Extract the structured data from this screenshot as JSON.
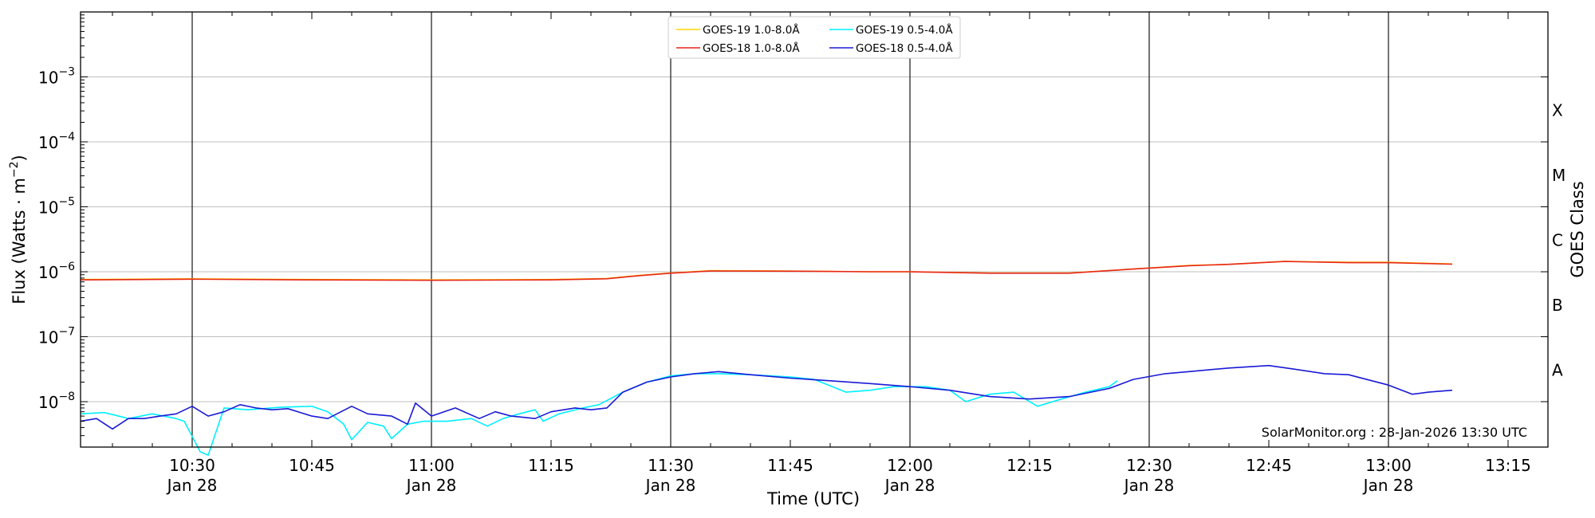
{
  "chart_data": {
    "type": "line",
    "xlabel": "Time (UTC)",
    "ylabel_base": "Flux (Watts · m",
    "ylabel_exp": "−2",
    "ylabel_close": ")",
    "right_label": "GOES Class",
    "credit": "SolarMonitor.org : 28-Jan-2026 13:30 UTC",
    "y_scale": "log",
    "ylim": [
      "2e-9",
      "1e-2"
    ],
    "xlim": [
      "10:16",
      "13:20"
    ],
    "grid": "horizontal at each decade",
    "legend_position": "top-center",
    "x_ticks": [
      {
        "time": "10:30",
        "label": "10:30",
        "sub": "Jan 28",
        "major": true
      },
      {
        "time": "10:45",
        "label": "10:45",
        "sub": "",
        "major": false
      },
      {
        "time": "11:00",
        "label": "11:00",
        "sub": "Jan 28",
        "major": true
      },
      {
        "time": "11:15",
        "label": "11:15",
        "sub": "",
        "major": false
      },
      {
        "time": "11:30",
        "label": "11:30",
        "sub": "Jan 28",
        "major": true
      },
      {
        "time": "11:45",
        "label": "11:45",
        "sub": "",
        "major": false
      },
      {
        "time": "12:00",
        "label": "12:00",
        "sub": "Jan 28",
        "major": true
      },
      {
        "time": "12:15",
        "label": "12:15",
        "sub": "",
        "major": false
      },
      {
        "time": "12:30",
        "label": "12:30",
        "sub": "Jan 28",
        "major": true
      },
      {
        "time": "12:45",
        "label": "12:45",
        "sub": "",
        "major": false
      },
      {
        "time": "13:00",
        "label": "13:00",
        "sub": "Jan 28",
        "major": true
      },
      {
        "time": "13:15",
        "label": "13:15",
        "sub": "",
        "major": false
      }
    ],
    "y_ticks": [
      {
        "exp": -8,
        "label": "10",
        "sup": "−8"
      },
      {
        "exp": -7,
        "label": "10",
        "sup": "−7"
      },
      {
        "exp": -6,
        "label": "10",
        "sup": "−6"
      },
      {
        "exp": -5,
        "label": "10",
        "sup": "−5"
      },
      {
        "exp": -4,
        "label": "10",
        "sup": "−4"
      },
      {
        "exp": -3,
        "label": "10",
        "sup": "−3"
      }
    ],
    "goes_classes": [
      {
        "label": "A",
        "exp": -7.5
      },
      {
        "label": "B",
        "exp": -6.5
      },
      {
        "label": "C",
        "exp": -5.5
      },
      {
        "label": "M",
        "exp": -4.5
      },
      {
        "label": "X",
        "exp": -3.5
      }
    ],
    "series": [
      {
        "name": "GOES-19 1.0-8.0Å",
        "color": "#ffd700",
        "x": [
          "10:16",
          "10:30",
          "10:45",
          "11:00",
          "11:15",
          "11:22",
          "11:26",
          "11:30",
          "11:35",
          "11:45",
          "11:55",
          "12:00",
          "12:10",
          "12:20",
          "12:28",
          "12:35",
          "12:40",
          "12:47",
          "12:55",
          "13:00",
          "13:08"
        ],
        "y": [
          7.6e-07,
          7.8e-07,
          7.6e-07,
          7.5e-07,
          7.6e-07,
          7.9e-07,
          8.8e-07,
          9.6e-07,
          1.04e-06,
          1.03e-06,
          1e-06,
          1e-06,
          9.6e-07,
          9.6e-07,
          1.1e-06,
          1.25e-06,
          1.3e-06,
          1.45e-06,
          1.4e-06,
          1.4e-06,
          1.32e-06
        ]
      },
      {
        "name": "GOES-18 1.0-8.0Å",
        "color": "#e8251a",
        "x": [
          "10:16",
          "10:30",
          "10:45",
          "11:00",
          "11:15",
          "11:22",
          "11:26",
          "11:30",
          "11:35",
          "11:45",
          "11:55",
          "12:00",
          "12:10",
          "12:20",
          "12:28",
          "12:35",
          "12:40",
          "12:47",
          "12:55",
          "13:00",
          "13:08"
        ],
        "y": [
          7.5e-07,
          7.7e-07,
          7.5e-07,
          7.4e-07,
          7.5e-07,
          7.8e-07,
          8.7e-07,
          9.5e-07,
          1.03e-06,
          1.02e-06,
          1e-06,
          1e-06,
          9.5e-07,
          9.5e-07,
          1.1e-06,
          1.24e-06,
          1.3e-06,
          1.44e-06,
          1.38e-06,
          1.38e-06,
          1.31e-06
        ]
      },
      {
        "name": "GOES-19 0.5-4.0Å",
        "color": "#00f0ff",
        "x": [
          "10:16",
          "10:19",
          "10:22",
          "10:25",
          "10:28",
          "10:29",
          "10:31",
          "10:32",
          "10:34",
          "10:37",
          "10:41",
          "10:45",
          "10:47",
          "10:49",
          "10:50",
          "10:52",
          "10:54",
          "10:55",
          "10:57",
          "10:59",
          "11:02",
          "11:05",
          "11:07",
          "11:09",
          "11:11",
          "11:13",
          "11:14",
          "11:16",
          "11:19",
          "11:21",
          "11:24",
          "11:27",
          "11:30",
          "11:33",
          "11:36",
          "11:40",
          "11:45",
          "11:48",
          "11:52",
          "11:55",
          "11:58",
          "12:02",
          "12:05",
          "12:07",
          "12:10",
          "12:13",
          "12:16",
          "12:19",
          "12:22",
          "12:25",
          "12:26"
        ],
        "y": [
          6.5e-09,
          6.8e-09,
          5.5e-09,
          6.5e-09,
          5.5e-09,
          5e-09,
          1.7e-09,
          1.5e-09,
          8e-09,
          7.5e-09,
          8.2e-09,
          8.5e-09,
          7e-09,
          4.5e-09,
          2.6e-09,
          4.8e-09,
          4.2e-09,
          2.7e-09,
          4.5e-09,
          5e-09,
          5e-09,
          5.5e-09,
          4.2e-09,
          5.5e-09,
          6.5e-09,
          7.5e-09,
          5e-09,
          6.5e-09,
          8e-09,
          9e-09,
          1.4e-08,
          2e-08,
          2.5e-08,
          2.7e-08,
          2.7e-08,
          2.6e-08,
          2.4e-08,
          2.2e-08,
          1.4e-08,
          1.5e-08,
          1.7e-08,
          1.7e-08,
          1.5e-08,
          1e-08,
          1.3e-08,
          1.4e-08,
          8.5e-09,
          1.1e-08,
          1.4e-08,
          1.7e-08,
          2.1e-08
        ]
      },
      {
        "name": "GOES-18 0.5-4.0Å",
        "color": "#1a1ad6",
        "x": [
          "10:16",
          "10:18",
          "10:20",
          "10:22",
          "10:24",
          "10:26",
          "10:28",
          "10:30",
          "10:32",
          "10:34",
          "10:36",
          "10:38",
          "10:40",
          "10:42",
          "10:45",
          "10:47",
          "10:50",
          "10:52",
          "10:55",
          "10:57",
          "10:58",
          "11:00",
          "11:03",
          "11:06",
          "11:08",
          "11:10",
          "11:13",
          "11:15",
          "11:18",
          "11:20",
          "11:22",
          "11:24",
          "11:27",
          "11:30",
          "11:33",
          "11:36",
          "11:40",
          "11:45",
          "11:50",
          "11:55",
          "12:00",
          "12:05",
          "12:10",
          "12:15",
          "12:20",
          "12:25",
          "12:28",
          "12:32",
          "12:35",
          "12:40",
          "12:45",
          "12:48",
          "12:52",
          "12:55",
          "13:00",
          "13:03",
          "13:05",
          "13:08"
        ],
        "y": [
          5e-09,
          5.5e-09,
          3.8e-09,
          5.5e-09,
          5.5e-09,
          6e-09,
          6.5e-09,
          8.5e-09,
          6e-09,
          7e-09,
          9e-09,
          8e-09,
          7.5e-09,
          7.8e-09,
          6e-09,
          5.5e-09,
          8.5e-09,
          6.5e-09,
          6e-09,
          4.5e-09,
          9.5e-09,
          6e-09,
          8e-09,
          5.5e-09,
          7e-09,
          6e-09,
          5.5e-09,
          7e-09,
          8e-09,
          7.5e-09,
          8e-09,
          1.4e-08,
          2e-08,
          2.4e-08,
          2.7e-08,
          2.9e-08,
          2.6e-08,
          2.3e-08,
          2.1e-08,
          1.9e-08,
          1.7e-08,
          1.5e-08,
          1.2e-08,
          1.1e-08,
          1.2e-08,
          1.6e-08,
          2.2e-08,
          2.7e-08,
          2.9e-08,
          3.3e-08,
          3.6e-08,
          3.2e-08,
          2.7e-08,
          2.6e-08,
          1.8e-08,
          1.3e-08,
          1.4e-08,
          1.5e-08
        ]
      }
    ]
  }
}
